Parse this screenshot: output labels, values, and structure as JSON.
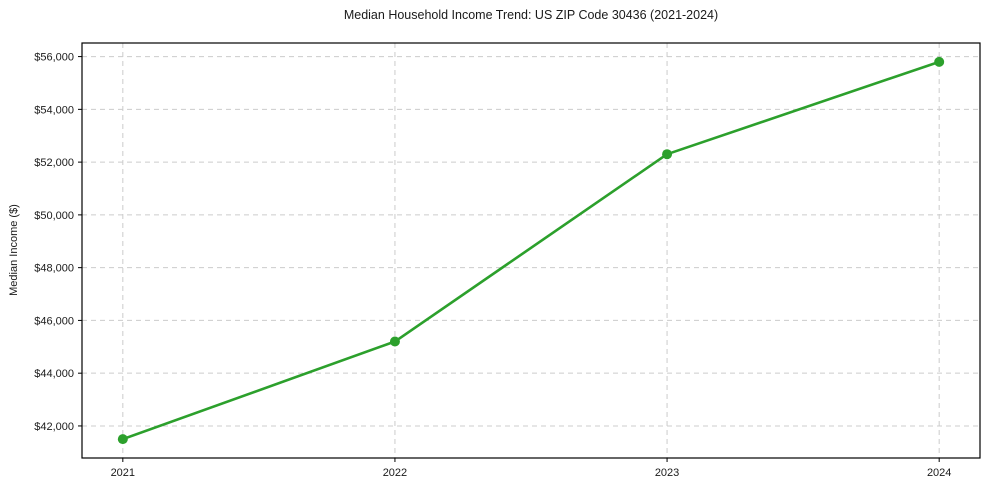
{
  "chart_data": {
    "type": "line",
    "title": "Median Household Income Trend: US ZIP Code 30436 (2021-2024)",
    "xlabel": "",
    "ylabel": "Median Income ($)",
    "x": [
      2021,
      2022,
      2023,
      2024
    ],
    "values": [
      41500,
      45200,
      52300,
      55800
    ],
    "xlim": [
      2020.85,
      2024.15
    ],
    "ylim": [
      40785,
      56515
    ],
    "xticks": [
      2021,
      2022,
      2023,
      2024
    ],
    "xtick_labels": [
      "2021",
      "2022",
      "2023",
      "2024"
    ],
    "yticks": [
      42000,
      44000,
      46000,
      48000,
      50000,
      52000,
      54000,
      56000
    ],
    "ytick_labels": [
      "$42,000",
      "$44,000",
      "$46,000",
      "$48,000",
      "$50,000",
      "$52,000",
      "$54,000",
      "$56,000"
    ],
    "grid": true,
    "grid_style": "dashed",
    "legend": "none",
    "line_color": "#2ca02c",
    "marker": "circle",
    "marker_size": 10,
    "background": "#ffffff"
  }
}
